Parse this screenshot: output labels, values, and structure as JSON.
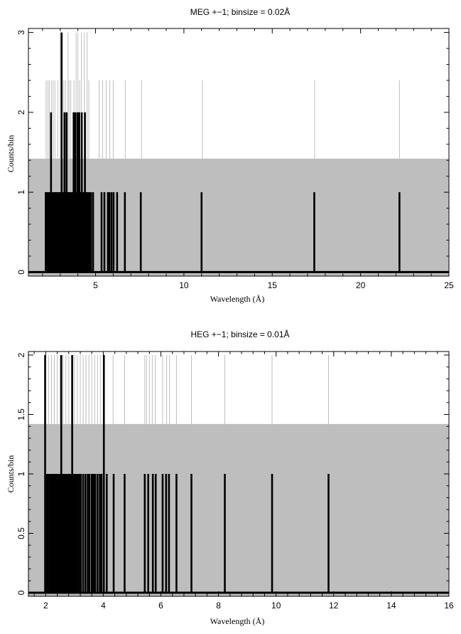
{
  "chart_data": [
    {
      "type": "histogram",
      "title": "MEG +−1; binsize = 0.02Å",
      "xlabel": "Wavelength (Å)",
      "ylabel": "Counts/bin",
      "xlim": [
        1.2,
        25
      ],
      "ylim": [
        -0.05,
        3.05
      ],
      "xticks": [
        5,
        10,
        15,
        20,
        25
      ],
      "yticks": [
        0,
        1,
        2,
        3
      ],
      "grid": false,
      "background_band": {
        "ymin": -0.05,
        "ymax": 1.42,
        "color": "#bebebe"
      },
      "black_series": {
        "name": "",
        "x": [
          2.18,
          2.24,
          2.3,
          2.36,
          2.42,
          2.48,
          2.52,
          2.56,
          2.62,
          2.68,
          2.74,
          2.8,
          2.86,
          2.92,
          2.98,
          3.04,
          3.08,
          3.12,
          3.18,
          3.24,
          3.28,
          3.32,
          3.36,
          3.42,
          3.48,
          3.52,
          3.58,
          3.64,
          3.7,
          3.76,
          3.82,
          3.86,
          3.92,
          3.98,
          4.02,
          4.08,
          4.12,
          4.18,
          4.22,
          4.28,
          4.34,
          4.4,
          4.46,
          4.52,
          4.6,
          4.66,
          4.74,
          4.86,
          5.34,
          5.5,
          5.7,
          5.78,
          5.9,
          6.02,
          6.22,
          6.66,
          7.56,
          11.0,
          17.38,
          22.2
        ],
        "y": [
          1,
          1,
          1,
          1,
          1,
          2,
          1,
          1,
          1,
          1,
          1,
          1,
          1,
          1,
          1,
          1,
          3,
          1,
          1,
          2,
          1,
          1,
          2,
          1,
          1,
          1,
          1,
          1,
          1,
          2,
          1,
          2,
          1,
          2,
          2,
          2,
          1,
          1,
          2,
          1,
          1,
          2,
          1,
          1,
          1,
          1,
          1,
          1,
          1,
          1,
          1,
          1,
          1,
          1,
          1,
          1,
          1,
          1,
          1,
          1
        ],
        "color": "#000000"
      },
      "gray_lines": {
        "x": [
          2.2,
          2.3,
          2.38,
          2.5,
          2.6,
          2.7,
          2.86,
          3.0,
          3.1,
          3.2,
          3.3,
          3.44,
          3.5,
          3.6,
          3.78,
          3.9,
          4.0,
          4.1,
          4.2,
          4.36,
          4.52,
          4.62,
          5.2,
          5.4,
          5.6,
          5.8,
          6.0,
          6.68,
          7.6,
          11.05,
          17.4,
          22.2
        ],
        "top": [
          2.4,
          2.4,
          2.4,
          2.4,
          2.4,
          2.4,
          2.4,
          3.0,
          3.0,
          2.4,
          2.4,
          3.0,
          2.4,
          2.4,
          2.4,
          3.0,
          3.0,
          2.4,
          3.0,
          3.0,
          3.0,
          2.4,
          2.4,
          2.4,
          2.4,
          2.4,
          2.4,
          2.4,
          2.4,
          2.4,
          2.4,
          2.4
        ],
        "color": "#bebebe"
      }
    },
    {
      "type": "histogram",
      "title": "HEG +−1; binsize = 0.01Å",
      "xlabel": "Wavelength (Å)",
      "ylabel": "Counts/bin",
      "xlim": [
        1.4,
        16
      ],
      "ylim": [
        -0.03,
        2.03
      ],
      "xticks": [
        2,
        4,
        6,
        8,
        10,
        12,
        14,
        16
      ],
      "yticks": [
        0,
        0.5,
        1,
        1.5,
        2
      ],
      "grid": false,
      "background_band": {
        "ymin": -0.03,
        "ymax": 1.42,
        "color": "#bebebe"
      },
      "black_series": {
        "name": "",
        "x": [
          1.98,
          2.04,
          2.1,
          2.16,
          2.22,
          2.28,
          2.34,
          2.38,
          2.44,
          2.5,
          2.54,
          2.6,
          2.64,
          2.7,
          2.76,
          2.8,
          2.86,
          2.92,
          2.96,
          3.0,
          3.06,
          3.1,
          3.16,
          3.22,
          3.3,
          3.38,
          3.46,
          3.52,
          3.6,
          3.66,
          3.72,
          3.8,
          3.88,
          3.94,
          4.02,
          4.12,
          4.36,
          4.74,
          5.44,
          5.56,
          5.72,
          5.82,
          6.06,
          6.18,
          6.28,
          6.54,
          7.06,
          8.22,
          9.86,
          11.82
        ],
        "y": [
          2,
          1,
          1,
          1,
          1,
          1,
          1,
          1,
          1,
          1,
          2,
          1,
          1,
          1,
          1,
          1,
          1,
          2,
          1,
          1,
          1,
          1,
          1,
          1,
          1,
          1,
          1,
          1,
          1,
          1,
          1,
          1,
          1,
          1,
          2,
          1,
          1,
          1,
          1,
          1,
          1,
          1,
          1,
          1,
          1,
          1,
          1,
          1,
          1,
          1
        ],
        "color": "#000000"
      },
      "gray_lines": {
        "x": [
          2.0,
          2.1,
          2.2,
          2.3,
          2.4,
          2.5,
          2.6,
          2.7,
          2.8,
          2.9,
          3.0,
          3.1,
          3.2,
          3.3,
          3.4,
          3.5,
          3.6,
          3.7,
          3.8,
          3.9,
          4.0,
          4.34,
          4.74,
          5.44,
          5.5,
          5.6,
          5.7,
          5.8,
          6.06,
          6.2,
          6.3,
          6.54,
          7.06,
          8.22,
          9.86,
          11.82
        ],
        "top": [
          2.0,
          2.0,
          2.0,
          2.0,
          2.0,
          2.0,
          2.0,
          2.0,
          2.0,
          2.0,
          2.0,
          2.0,
          2.0,
          2.0,
          2.0,
          2.0,
          2.0,
          2.0,
          2.0,
          2.0,
          2.0,
          2.0,
          2.0,
          2.0,
          2.0,
          2.0,
          2.0,
          2.0,
          2.0,
          2.0,
          2.0,
          2.0,
          2.0,
          2.0,
          2.0,
          2.0
        ],
        "color": "#bebebe"
      }
    }
  ]
}
